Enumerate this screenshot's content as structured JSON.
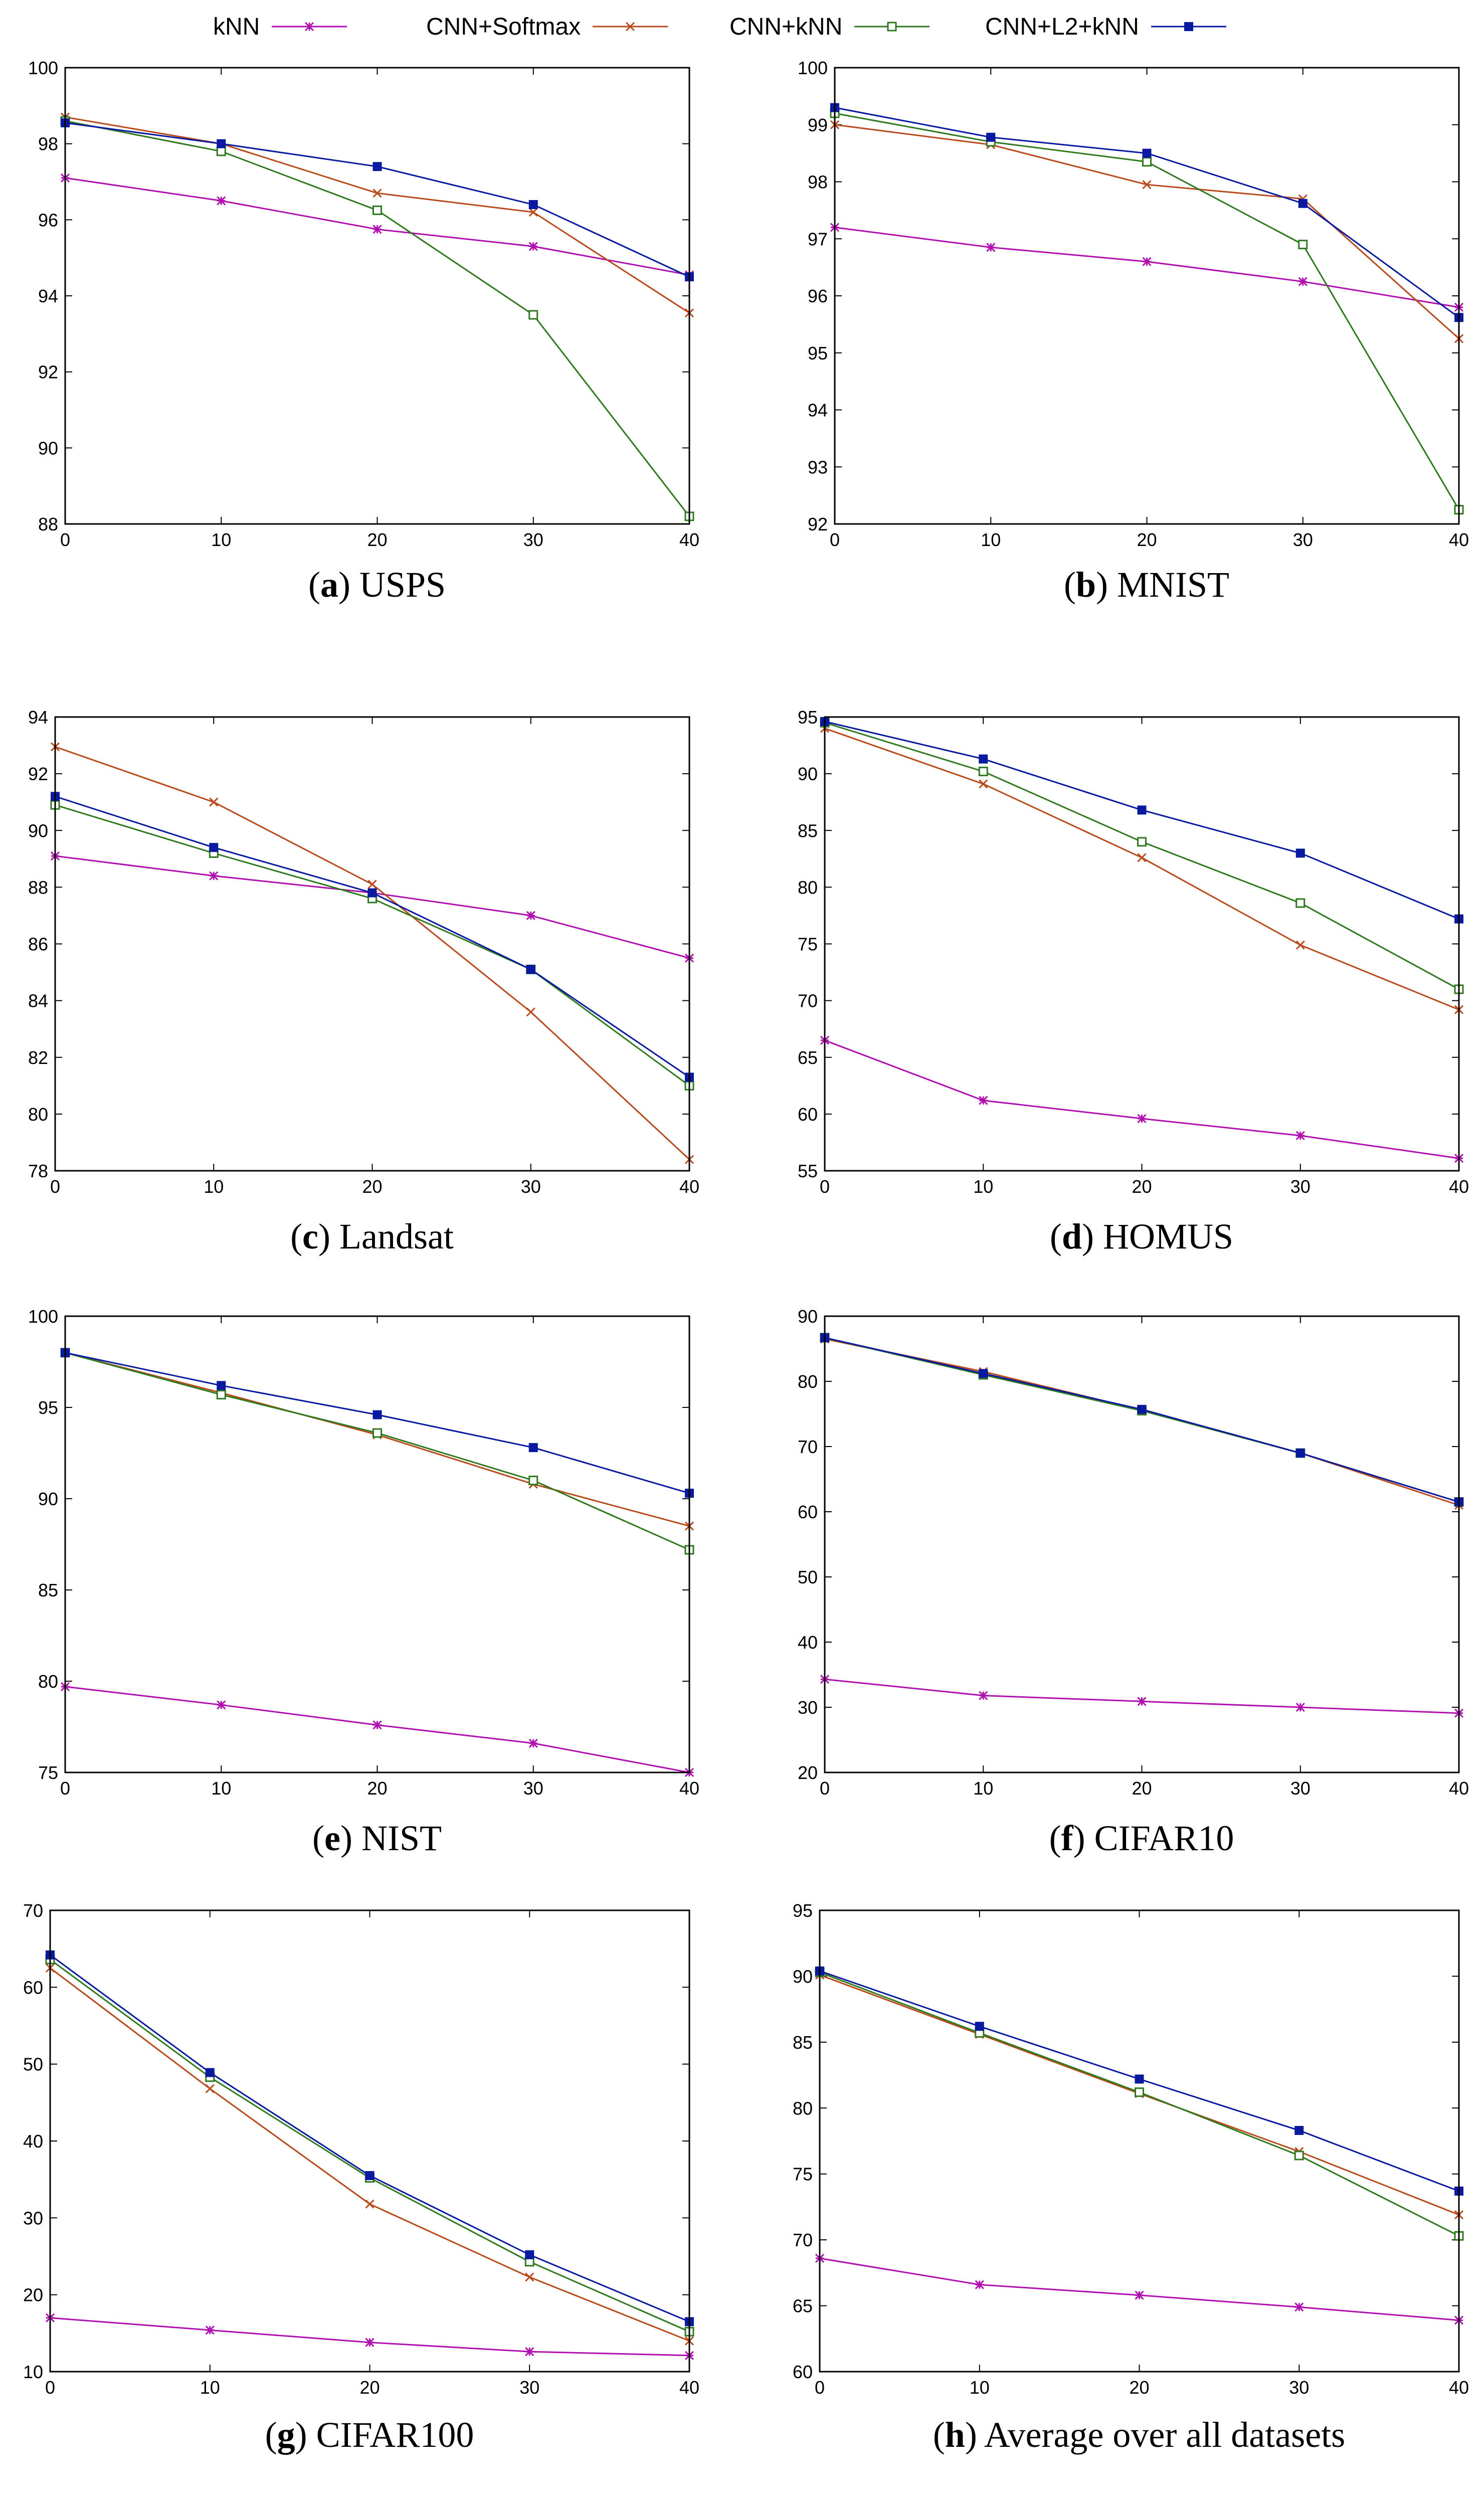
{
  "colors": {
    "knn": "#b010b0",
    "cnn_softmax": "#b84a1c",
    "cnn_knn": "#2f7a1e",
    "cnn_l2_knn": "#0a1aa0"
  },
  "legend": [
    {
      "key": "knn",
      "label": "kNN",
      "marker": "star"
    },
    {
      "key": "cnn_softmax",
      "label": "CNN+Softmax",
      "marker": "x"
    },
    {
      "key": "cnn_knn",
      "label": "CNN+kNN",
      "marker": "open-square"
    },
    {
      "key": "cnn_l2_knn",
      "label": "CNN+L2+kNN",
      "marker": "filled-square"
    }
  ],
  "chart_data": [
    {
      "type": "line",
      "id": "a",
      "caption_letter": "(a)",
      "caption_text": " USPS",
      "x": [
        0,
        10,
        20,
        30,
        40
      ],
      "xlim": [
        0,
        40
      ],
      "ylim": [
        88,
        100
      ],
      "xticks": [
        0,
        10,
        20,
        30,
        40
      ],
      "yticks": [
        88,
        90,
        92,
        94,
        96,
        98,
        100
      ],
      "series": [
        {
          "name": "kNN",
          "key": "knn",
          "values": [
            97.1,
            96.5,
            95.75,
            95.3,
            94.55
          ]
        },
        {
          "name": "CNN+Softmax",
          "key": "cnn_softmax",
          "values": [
            98.7,
            98.0,
            96.7,
            96.2,
            93.55
          ]
        },
        {
          "name": "CNN+kNN",
          "key": "cnn_knn",
          "values": [
            98.6,
            97.8,
            96.25,
            93.5,
            88.2
          ]
        },
        {
          "name": "CNN+L2+kNN",
          "key": "cnn_l2_knn",
          "values": [
            98.55,
            98.0,
            97.4,
            96.4,
            94.5
          ]
        }
      ]
    },
    {
      "type": "line",
      "id": "b",
      "caption_letter": "(b)",
      "caption_text": " MNIST",
      "x": [
        0,
        10,
        20,
        30,
        40
      ],
      "xlim": [
        0,
        40
      ],
      "ylim": [
        92,
        100
      ],
      "xticks": [
        0,
        10,
        20,
        30,
        40
      ],
      "yticks": [
        92,
        93,
        94,
        95,
        96,
        97,
        98,
        99,
        100
      ],
      "series": [
        {
          "name": "kNN",
          "key": "knn",
          "values": [
            97.2,
            96.85,
            96.6,
            96.25,
            95.8
          ]
        },
        {
          "name": "CNN+Softmax",
          "key": "cnn_softmax",
          "values": [
            99.0,
            98.65,
            97.95,
            97.7,
            95.25
          ]
        },
        {
          "name": "CNN+kNN",
          "key": "cnn_knn",
          "values": [
            99.2,
            98.7,
            98.35,
            96.9,
            92.25
          ]
        },
        {
          "name": "CNN+L2+kNN",
          "key": "cnn_l2_knn",
          "values": [
            99.3,
            98.78,
            98.5,
            97.62,
            95.62
          ]
        }
      ]
    },
    {
      "type": "line",
      "id": "c",
      "caption_letter": "(c)",
      "caption_text": " Landsat",
      "x": [
        0,
        10,
        20,
        30,
        40
      ],
      "xlim": [
        0,
        40
      ],
      "ylim": [
        78,
        94
      ],
      "xticks": [
        0,
        10,
        20,
        30,
        40
      ],
      "yticks": [
        78,
        80,
        82,
        84,
        86,
        88,
        90,
        92,
        94
      ],
      "series": [
        {
          "name": "kNN",
          "key": "knn",
          "values": [
            89.1,
            88.4,
            87.8,
            87.0,
            85.5
          ]
        },
        {
          "name": "CNN+Softmax",
          "key": "cnn_softmax",
          "values": [
            92.95,
            91.0,
            88.1,
            83.6,
            78.4
          ]
        },
        {
          "name": "CNN+kNN",
          "key": "cnn_knn",
          "values": [
            90.9,
            89.2,
            87.6,
            85.1,
            81.0
          ]
        },
        {
          "name": "CNN+L2+kNN",
          "key": "cnn_l2_knn",
          "values": [
            91.2,
            89.4,
            87.8,
            85.1,
            81.3
          ]
        }
      ]
    },
    {
      "type": "line",
      "id": "d",
      "caption_letter": "(d)",
      "caption_text": " HOMUS",
      "x": [
        0,
        10,
        20,
        30,
        40
      ],
      "xlim": [
        0,
        40
      ],
      "ylim": [
        55,
        95
      ],
      "xticks": [
        0,
        10,
        20,
        30,
        40
      ],
      "yticks": [
        55,
        60,
        65,
        70,
        75,
        80,
        85,
        90,
        95
      ],
      "series": [
        {
          "name": "kNN",
          "key": "knn",
          "values": [
            66.5,
            61.2,
            59.6,
            58.1,
            56.1
          ]
        },
        {
          "name": "CNN+Softmax",
          "key": "cnn_softmax",
          "values": [
            94.0,
            89.1,
            82.6,
            74.9,
            69.2
          ]
        },
        {
          "name": "CNN+kNN",
          "key": "cnn_knn",
          "values": [
            94.5,
            90.2,
            84.0,
            78.6,
            71.0
          ]
        },
        {
          "name": "CNN+L2+kNN",
          "key": "cnn_l2_knn",
          "values": [
            94.6,
            91.3,
            86.8,
            83.0,
            77.2
          ]
        }
      ]
    },
    {
      "type": "line",
      "id": "e",
      "caption_letter": "(e)",
      "caption_text": " NIST",
      "x": [
        0,
        10,
        20,
        30,
        40
      ],
      "xlim": [
        0,
        40
      ],
      "ylim": [
        75,
        100
      ],
      "xticks": [
        0,
        10,
        20,
        30,
        40
      ],
      "yticks": [
        75,
        80,
        85,
        90,
        95,
        100
      ],
      "series": [
        {
          "name": "kNN",
          "key": "knn",
          "values": [
            79.7,
            78.7,
            77.6,
            76.6,
            75.0
          ]
        },
        {
          "name": "CNN+Softmax",
          "key": "cnn_softmax",
          "values": [
            98.0,
            95.8,
            93.5,
            90.8,
            88.5
          ]
        },
        {
          "name": "CNN+kNN",
          "key": "cnn_knn",
          "values": [
            98.0,
            95.7,
            93.6,
            91.0,
            87.2
          ]
        },
        {
          "name": "CNN+L2+kNN",
          "key": "cnn_l2_knn",
          "values": [
            98.0,
            96.2,
            94.6,
            92.8,
            90.3
          ]
        }
      ]
    },
    {
      "type": "line",
      "id": "f",
      "caption_letter": "(f)",
      "caption_text": " CIFAR10",
      "x": [
        0,
        10,
        20,
        30,
        40
      ],
      "xlim": [
        0,
        40
      ],
      "ylim": [
        20,
        90
      ],
      "xticks": [
        0,
        10,
        20,
        30,
        40
      ],
      "yticks": [
        20,
        30,
        40,
        50,
        60,
        70,
        80,
        90
      ],
      "series": [
        {
          "name": "kNN",
          "key": "knn",
          "values": [
            34.3,
            31.8,
            30.9,
            30.0,
            29.1
          ]
        },
        {
          "name": "CNN+Softmax",
          "key": "cnn_softmax",
          "values": [
            86.5,
            81.5,
            75.6,
            69.0,
            61.0
          ]
        },
        {
          "name": "CNN+kNN",
          "key": "cnn_knn",
          "values": [
            86.7,
            81.0,
            75.5,
            69.0,
            61.5
          ]
        },
        {
          "name": "CNN+L2+kNN",
          "key": "cnn_l2_knn",
          "values": [
            86.7,
            81.2,
            75.7,
            69.0,
            61.5
          ]
        }
      ]
    },
    {
      "type": "line",
      "id": "g",
      "caption_letter": "(g)",
      "caption_text": " CIFAR100",
      "x": [
        0,
        10,
        20,
        30,
        40
      ],
      "xlim": [
        0,
        40
      ],
      "ylim": [
        10,
        70
      ],
      "xticks": [
        0,
        10,
        20,
        30,
        40
      ],
      "yticks": [
        10,
        20,
        30,
        40,
        50,
        60,
        70
      ],
      "series": [
        {
          "name": "kNN",
          "key": "knn",
          "values": [
            17.0,
            15.4,
            13.8,
            12.6,
            12.1
          ]
        },
        {
          "name": "CNN+Softmax",
          "key": "cnn_softmax",
          "values": [
            62.5,
            46.8,
            31.8,
            22.3,
            14.0
          ]
        },
        {
          "name": "CNN+kNN",
          "key": "cnn_knn",
          "values": [
            63.6,
            48.3,
            35.2,
            24.3,
            15.2
          ]
        },
        {
          "name": "CNN+L2+kNN",
          "key": "cnn_l2_knn",
          "values": [
            64.2,
            48.9,
            35.5,
            25.2,
            16.5
          ]
        }
      ]
    },
    {
      "type": "line",
      "id": "h",
      "caption_letter": "(h)",
      "caption_text": " Average over all datasets",
      "x": [
        0,
        10,
        20,
        30,
        40
      ],
      "xlim": [
        0,
        40
      ],
      "ylim": [
        60,
        95
      ],
      "xticks": [
        0,
        10,
        20,
        30,
        40
      ],
      "yticks": [
        60,
        65,
        70,
        75,
        80,
        85,
        90,
        95
      ],
      "series": [
        {
          "name": "kNN",
          "key": "knn",
          "values": [
            68.6,
            66.6,
            65.8,
            64.9,
            63.9
          ]
        },
        {
          "name": "CNN+Softmax",
          "key": "cnn_softmax",
          "values": [
            90.1,
            85.6,
            81.1,
            76.7,
            71.9
          ]
        },
        {
          "name": "CNN+kNN",
          "key": "cnn_knn",
          "values": [
            90.3,
            85.7,
            81.2,
            76.4,
            70.3
          ]
        },
        {
          "name": "CNN+L2+kNN",
          "key": "cnn_l2_knn",
          "values": [
            90.4,
            86.2,
            82.2,
            78.3,
            73.7
          ]
        }
      ]
    }
  ]
}
